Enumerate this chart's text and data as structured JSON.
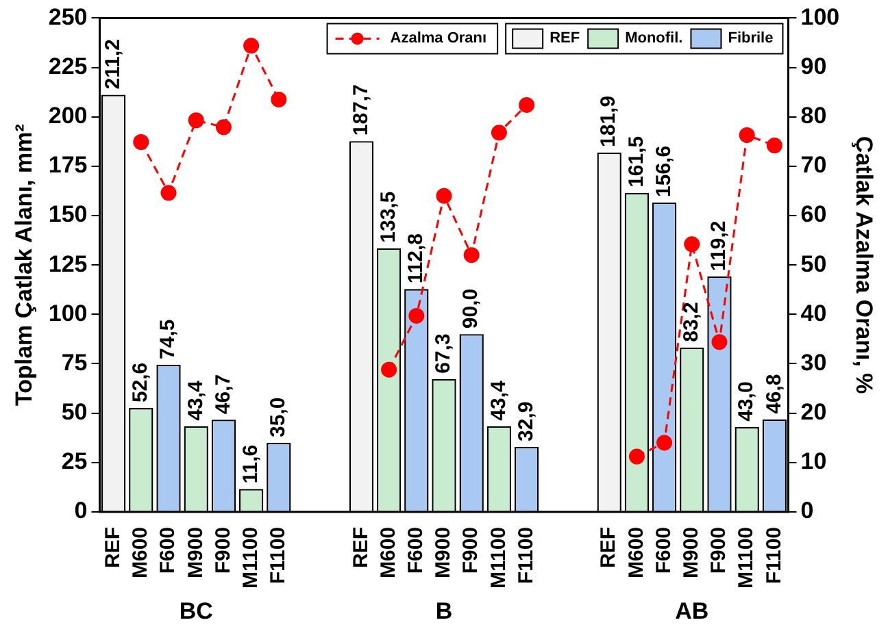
{
  "chart_data": {
    "type": "bar",
    "categories": [
      "REF",
      "M600",
      "F600",
      "M900",
      "F900",
      "M1100",
      "F1100",
      null,
      null,
      "REF",
      "M600",
      "F600",
      "M900",
      "F900",
      "M1100",
      "F1100",
      null,
      null,
      "REF",
      "M600",
      "F600",
      "M900",
      "F900",
      "M1100",
      "F1100"
    ],
    "series": [
      {
        "name": "REF",
        "color": "#f2f2f2",
        "values": [
          211.2,
          null,
          null,
          null,
          null,
          null,
          null,
          null,
          null,
          187.7,
          null,
          null,
          null,
          null,
          null,
          null,
          null,
          null,
          181.9,
          null,
          null,
          null,
          null,
          null,
          null
        ],
        "value_labels": [
          "211,2",
          null,
          null,
          null,
          null,
          null,
          null,
          null,
          null,
          "187,7",
          null,
          null,
          null,
          null,
          null,
          null,
          null,
          null,
          "181,9",
          null,
          null,
          null,
          null,
          null,
          null
        ]
      },
      {
        "name": "Monofil.",
        "color": "#c9ebcf",
        "values": [
          null,
          52.6,
          null,
          43.4,
          null,
          11.6,
          null,
          null,
          null,
          null,
          133.5,
          null,
          67.3,
          null,
          43.4,
          null,
          null,
          null,
          null,
          161.5,
          null,
          83.2,
          null,
          43.0,
          null
        ],
        "value_labels": [
          null,
          "52,6",
          null,
          "43,4",
          null,
          "11,6",
          null,
          null,
          null,
          null,
          "133,5",
          null,
          "67,3",
          null,
          "43,4",
          null,
          null,
          null,
          null,
          "161,5",
          null,
          "83,2",
          null,
          "43,0",
          null
        ]
      },
      {
        "name": "Fibrile",
        "color": "#a9c9f2",
        "values": [
          null,
          null,
          74.5,
          null,
          46.7,
          null,
          35.0,
          null,
          null,
          null,
          null,
          112.8,
          null,
          90.0,
          null,
          32.9,
          null,
          null,
          null,
          null,
          156.6,
          null,
          119.2,
          null,
          46.8
        ],
        "value_labels": [
          null,
          null,
          "74,5",
          null,
          "46,7",
          null,
          "35,0",
          null,
          null,
          null,
          null,
          "112,8",
          null,
          "90,0",
          null,
          "32,9",
          null,
          null,
          null,
          null,
          "156,6",
          null,
          "119,2",
          null,
          "46,8"
        ]
      },
      {
        "name": "Azalma Oranı",
        "type": "line",
        "axis": "y2",
        "color": "#ff0000",
        "values": [
          null,
          74.9,
          64.6,
          79.3,
          77.9,
          94.4,
          83.5,
          null,
          null,
          null,
          28.8,
          39.7,
          64,
          52,
          76.8,
          82.4,
          null,
          null,
          null,
          11.2,
          14,
          54.2,
          34.4,
          76.3,
          74.2
        ]
      }
    ],
    "annotations": [
      "BC",
      "B",
      "AB"
    ],
    "ylabel": "Toplam Çatlak Alanı, mm²",
    "y2label": "Çatlak Azalma Oranı, %",
    "ylim": [
      0,
      250
    ],
    "yticks": [
      0,
      25,
      50,
      75,
      100,
      125,
      150,
      175,
      200,
      225,
      250
    ],
    "y2lim": [
      0,
      100
    ],
    "y2ticks": [
      0,
      10,
      20,
      30,
      40,
      50,
      60,
      70,
      80,
      90,
      100
    ],
    "legend": "top right",
    "marker": "circle",
    "line_style": "dashed"
  }
}
